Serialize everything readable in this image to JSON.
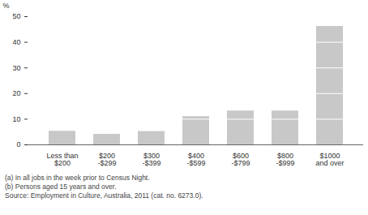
{
  "chart_data": {
    "type": "bar",
    "ylabel": "%",
    "categories": [
      "Less than\n$200",
      "$200\n-$299",
      "$300\n-$399",
      "$400\n-$599",
      "$600\n-$799",
      "$800\n-$999",
      "$1000\nand over"
    ],
    "values": [
      5.3,
      4.1,
      5.2,
      11,
      13.2,
      13.2,
      46.2
    ],
    "color": "#c8c8c8",
    "ylim": [
      0,
      50
    ],
    "yticks": [
      0,
      10,
      20,
      30,
      40,
      50
    ],
    "grid": true,
    "notes": [
      "(a) In all jobs in the week prior to Census Night.",
      "(b) Persons aged 15 years and over."
    ],
    "source": "Source: Employment in Culture, Australia, 2011 (cat. no. 6273.0)."
  }
}
